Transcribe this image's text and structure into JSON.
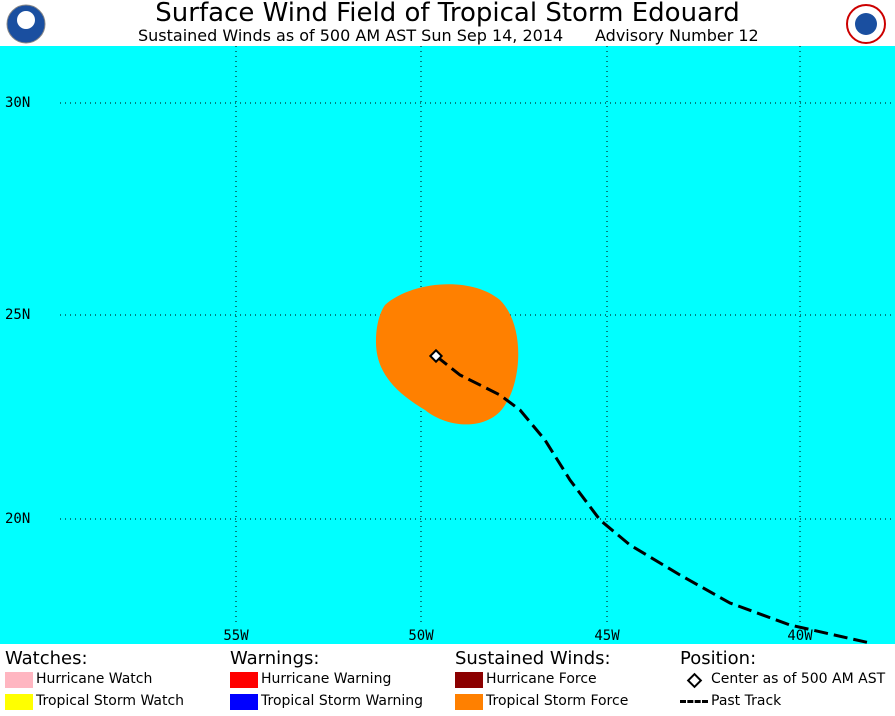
{
  "header": {
    "title": "Surface Wind Field of Tropical Storm Edouard",
    "subtitle": "Sustained Winds as of 500 AM AST Sun Sep 14, 2014",
    "advisory": "Advisory Number 12"
  },
  "map": {
    "lat_labels": [
      "30N",
      "25N",
      "20N"
    ],
    "lon_labels": [
      "55W",
      "50W",
      "45W",
      "40W"
    ]
  },
  "legend": [
    {
      "heading": "Watches:",
      "items": [
        {
          "label": "Hurricane Watch",
          "color": "#ffb6c1"
        },
        {
          "label": "Tropical Storm Watch",
          "color": "#ffff00"
        }
      ]
    },
    {
      "heading": "Warnings:",
      "items": [
        {
          "label": "Hurricane Warning",
          "color": "#ff0000"
        },
        {
          "label": "Tropical Storm Warning",
          "color": "#0000ff"
        }
      ]
    },
    {
      "heading": "Sustained Winds:",
      "items": [
        {
          "label": "Hurricane Force",
          "color": "#8b0000"
        },
        {
          "label": "Tropical Storm Force",
          "color": "#ff8000"
        }
      ]
    },
    {
      "heading": "Position:",
      "items": [
        {
          "label": "Center as of 500 AM AST"
        },
        {
          "label": "Past Track"
        }
      ]
    }
  ]
}
